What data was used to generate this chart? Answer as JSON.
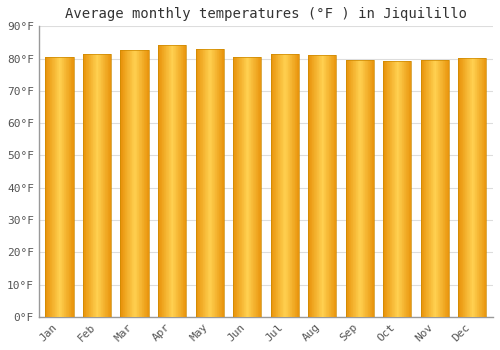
{
  "title": "Average monthly temperatures (°F ) in Jiquilillo",
  "months": [
    "Jan",
    "Feb",
    "Mar",
    "Apr",
    "May",
    "Jun",
    "Jul",
    "Aug",
    "Sep",
    "Oct",
    "Nov",
    "Dec"
  ],
  "values": [
    80.5,
    81.5,
    82.7,
    84.2,
    83.0,
    80.5,
    81.5,
    81.2,
    79.5,
    79.3,
    79.5,
    80.2
  ],
  "bar_color_left": "#E8920A",
  "bar_color_center": "#FFD070",
  "bar_color_right": "#E8920A",
  "bar_edge_color": "#CC8800",
  "background_color": "#FFFFFF",
  "plot_bg_color": "#FFFFFF",
  "grid_color": "#DDDDDD",
  "spine_color": "#999999",
  "ylim": [
    0,
    90
  ],
  "ytick_step": 10,
  "title_fontsize": 10,
  "tick_fontsize": 8,
  "font_family": "monospace",
  "bar_width": 0.75
}
